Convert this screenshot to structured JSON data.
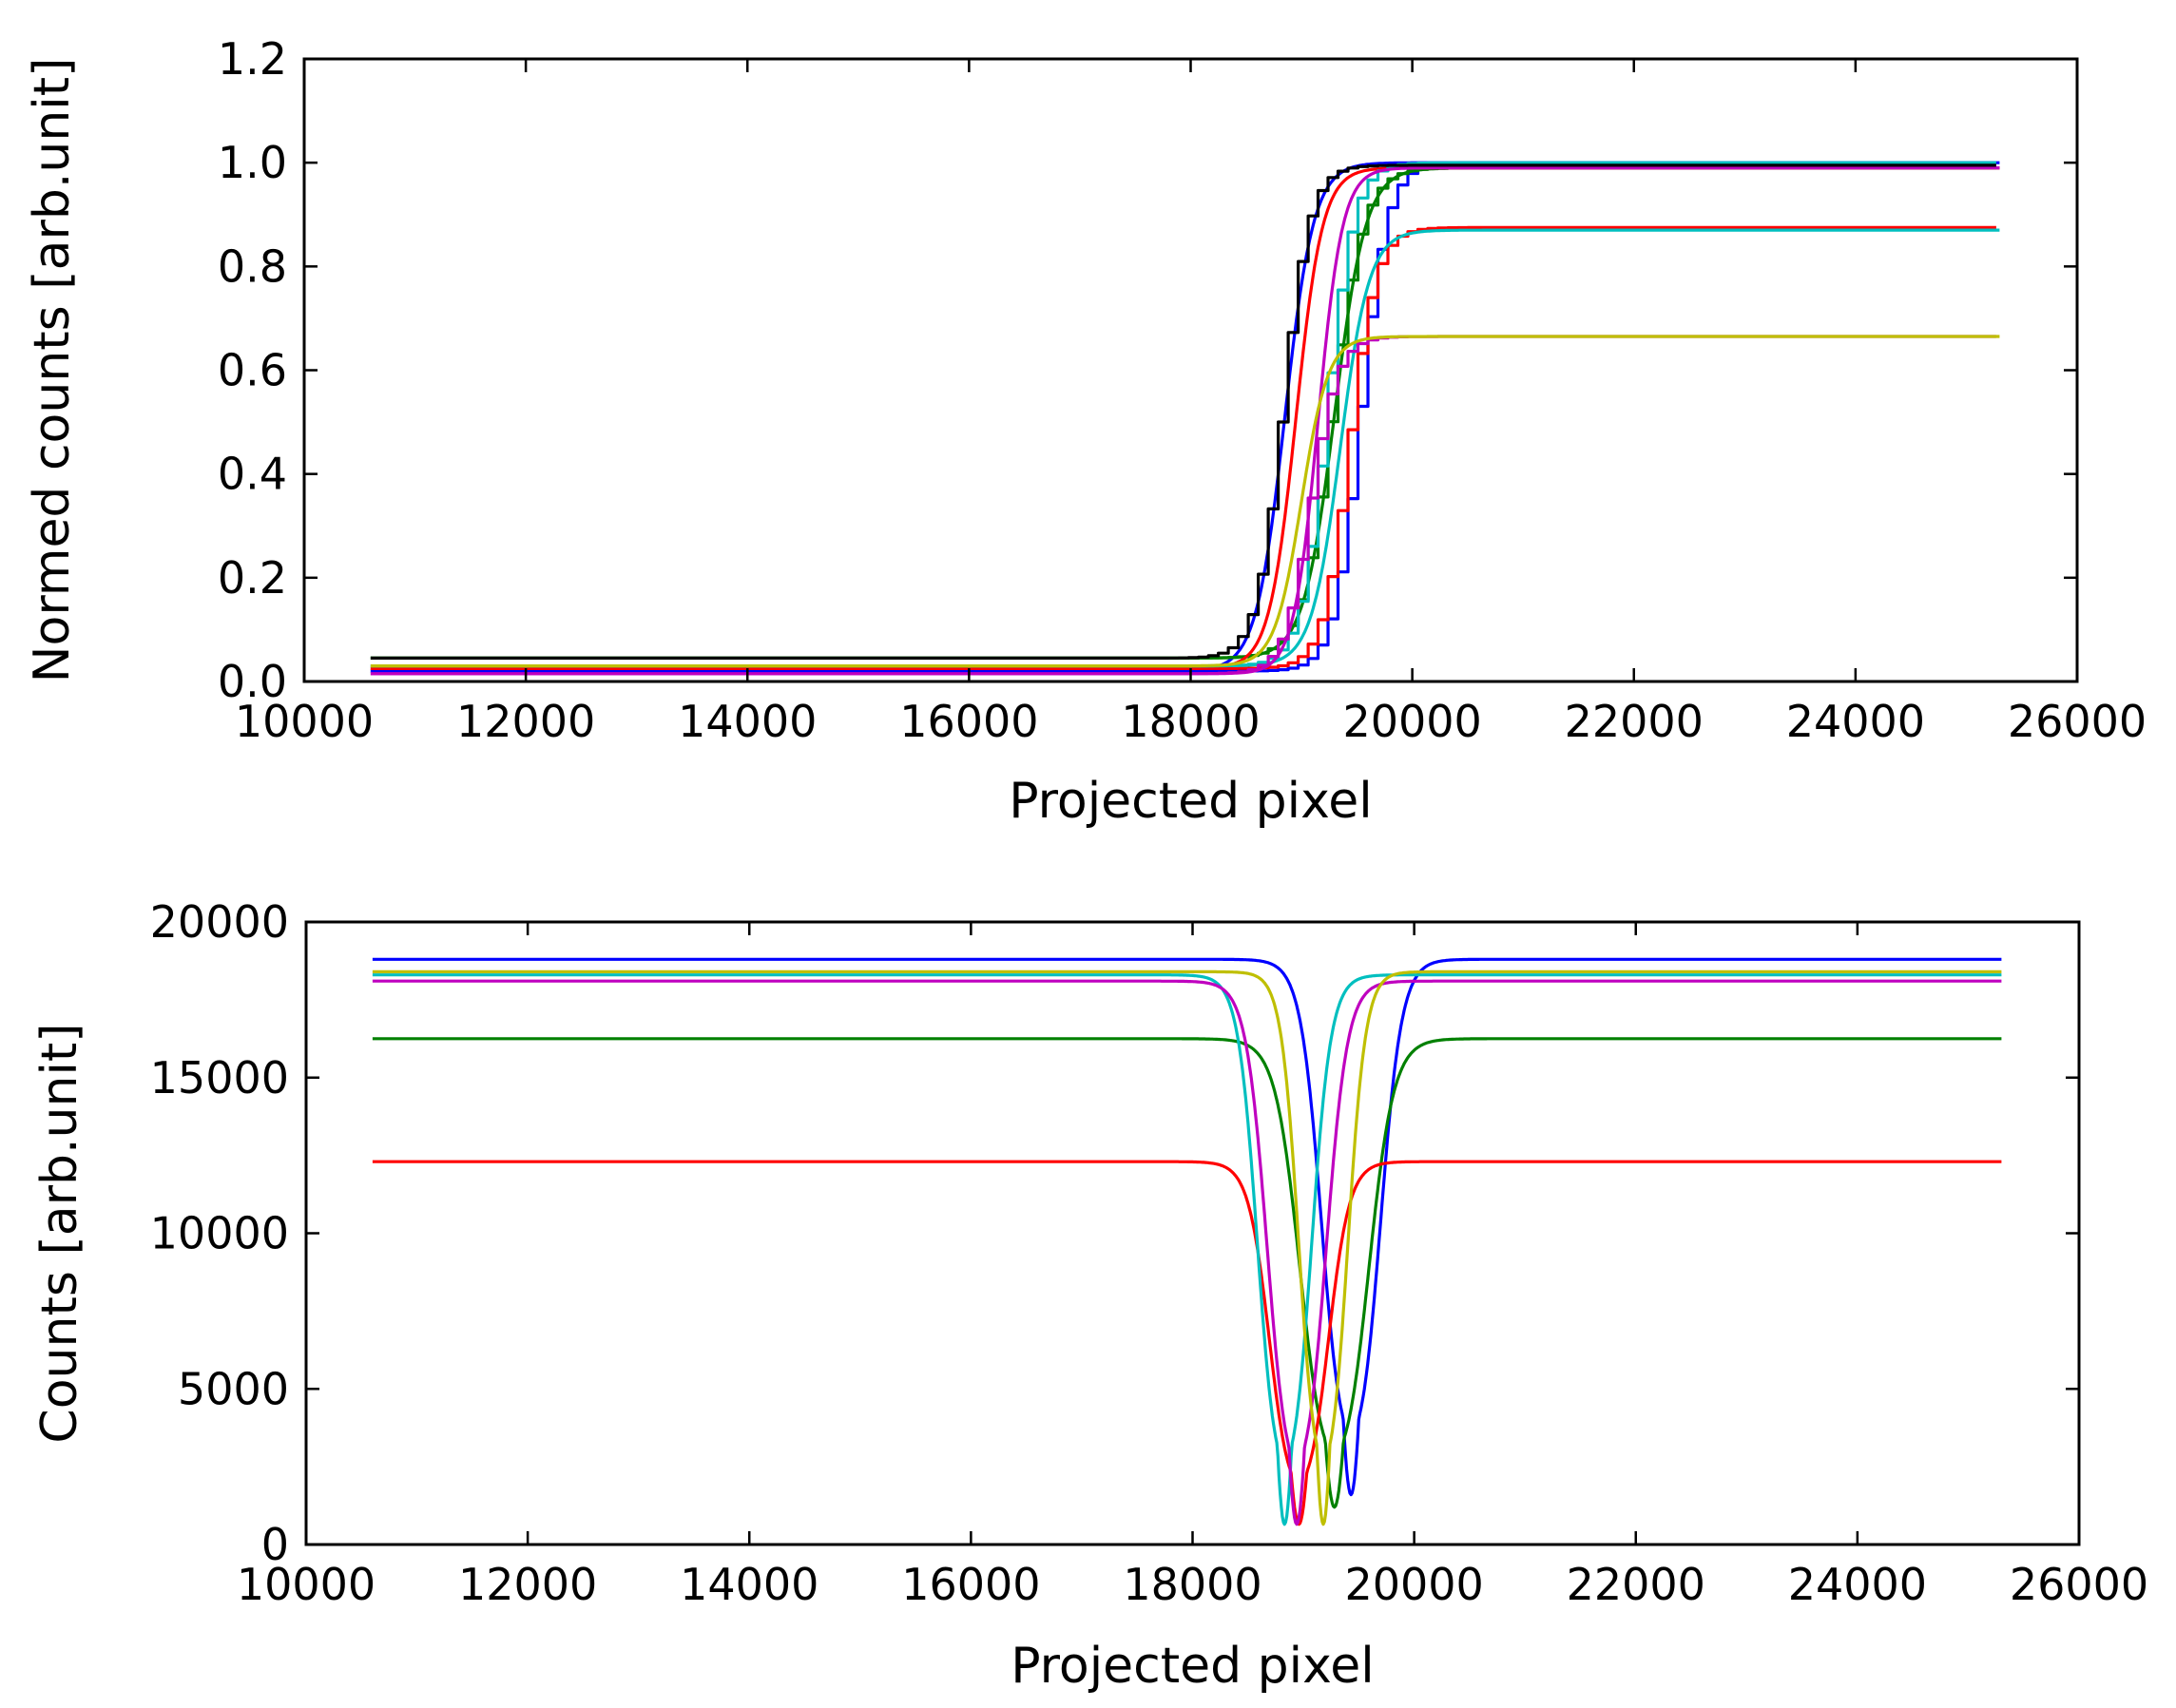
{
  "colors": {
    "blue": "#0000ff",
    "green": "#008000",
    "red": "#ff0000",
    "cyan": "#00bfbf",
    "magenta": "#bf00bf",
    "yellow": "#bfbf00",
    "black": "#000000"
  },
  "chart_data": [
    {
      "type": "line",
      "xlabel": "Projected pixel",
      "ylabel": "Normed counts [arb.unit]",
      "xlim": [
        10000,
        26000
      ],
      "ylim": [
        0.0,
        1.2
      ],
      "xticks": [
        "10000",
        "12000",
        "14000",
        "16000",
        "18000",
        "20000",
        "22000",
        "24000",
        "26000"
      ],
      "yticks": [
        "0.0",
        "0.2",
        "0.4",
        "0.6",
        "0.8",
        "1.0",
        "1.2"
      ],
      "grid": false,
      "x_range": [
        10600,
        25300
      ],
      "series": [
        {
          "color": "blue",
          "style": "smooth",
          "base": 0.02,
          "top": 1.0,
          "center": 18850,
          "width": 130
        },
        {
          "color": "blue",
          "style": "step",
          "base": 0.02,
          "top": 1.0,
          "center": 19500,
          "width": 120
        },
        {
          "color": "green",
          "style": "smooth",
          "base": 0.045,
          "top": 0.99,
          "center": 19300,
          "width": 140
        },
        {
          "color": "green",
          "style": "step",
          "base": 0.045,
          "top": 0.99,
          "center": 19250,
          "width": 140
        },
        {
          "color": "red",
          "style": "smooth",
          "base": 0.025,
          "top": 0.99,
          "center": 18950,
          "width": 120
        },
        {
          "color": "red",
          "style": "step",
          "base": 0.025,
          "top": 0.875,
          "center": 19400,
          "width": 120
        },
        {
          "color": "cyan",
          "style": "smooth",
          "base": 0.03,
          "top": 0.87,
          "center": 19350,
          "width": 130
        },
        {
          "color": "cyan",
          "style": "step",
          "base": 0.03,
          "top": 1.0,
          "center": 19200,
          "width": 120
        },
        {
          "color": "magenta",
          "style": "smooth",
          "base": 0.015,
          "top": 0.99,
          "center": 19150,
          "width": 110
        },
        {
          "color": "magenta",
          "style": "step",
          "base": 0.015,
          "top": 0.665,
          "center": 19050,
          "width": 120
        },
        {
          "color": "yellow",
          "style": "smooth",
          "base": 0.03,
          "top": 0.665,
          "center": 19000,
          "width": 120
        },
        {
          "color": "black",
          "style": "step",
          "base": 0.045,
          "top": 0.995,
          "center": 18800,
          "width": 120
        }
      ]
    },
    {
      "type": "line",
      "xlabel": "Projected pixel",
      "ylabel": "Counts [arb.unit]",
      "xlim": [
        10000,
        26000
      ],
      "ylim": [
        0,
        20000
      ],
      "xticks": [
        "10000",
        "12000",
        "14000",
        "16000",
        "18000",
        "20000",
        "22000",
        "24000",
        "26000"
      ],
      "yticks": [
        "0",
        "5000",
        "10000",
        "15000",
        "20000"
      ],
      "grid": false,
      "x_range": [
        10600,
        25300
      ],
      "series": [
        {
          "color": "blue",
          "baseline": 18800,
          "minimum": 1600,
          "center": 19430,
          "width": 120
        },
        {
          "color": "green",
          "baseline": 16250,
          "minimum": 1200,
          "center": 19280,
          "width": 140
        },
        {
          "color": "red",
          "baseline": 12300,
          "minimum": 650,
          "center": 18960,
          "width": 120
        },
        {
          "color": "cyan",
          "baseline": 18300,
          "minimum": 650,
          "center": 18830,
          "width": 110
        },
        {
          "color": "magenta",
          "baseline": 18100,
          "minimum": 650,
          "center": 18940,
          "width": 120
        },
        {
          "color": "yellow",
          "baseline": 18400,
          "minimum": 650,
          "center": 19180,
          "width": 100
        }
      ]
    }
  ]
}
